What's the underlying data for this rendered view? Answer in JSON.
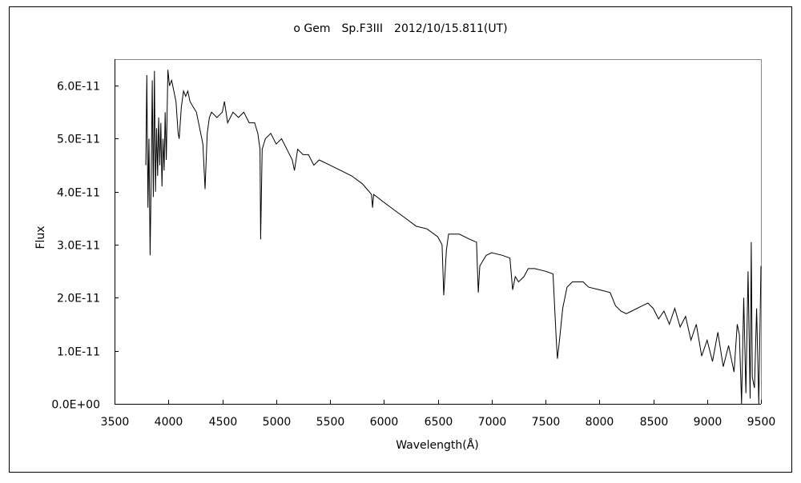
{
  "chart_data": {
    "type": "line",
    "title": "ο Gem　Sp.F3III　2012/10/15.811(UT)",
    "xlabel": "Wavelength(Å)",
    "ylabel": "Flux",
    "xlim": [
      3500,
      9500
    ],
    "ylim": [
      0,
      6.5e-11
    ],
    "x_ticks": [
      "3500",
      "4000",
      "4500",
      "5000",
      "5500",
      "6000",
      "6500",
      "7000",
      "7500",
      "8000",
      "8500",
      "9000",
      "9500"
    ],
    "x_tick_values": [
      3500,
      4000,
      4500,
      5000,
      5500,
      6000,
      6500,
      7000,
      7500,
      8000,
      8500,
      9000,
      9500
    ],
    "y_ticks": [
      "0.0E+00",
      "1.0E-11",
      "2.0E-11",
      "3.0E-11",
      "4.0E-11",
      "5.0E-11",
      "6.0E-11"
    ],
    "y_tick_values": [
      0,
      1e-11,
      2e-11,
      3e-11,
      4e-11,
      5e-11,
      6e-11
    ],
    "grid": false,
    "legend": "none",
    "line_color": "#000000",
    "series": [
      {
        "x": [
          3790,
          3800,
          3810,
          3820,
          3830,
          3840,
          3850,
          3860,
          3870,
          3880,
          3890,
          3900,
          3910,
          3920,
          3930,
          3940,
          3950,
          3960,
          3970,
          3980,
          3995,
          4010,
          4030,
          4050,
          4070,
          4090,
          4100,
          4120,
          4140,
          4160,
          4180,
          4200,
          4230,
          4260,
          4300,
          4320,
          4340,
          4360,
          4380,
          4400,
          4450,
          4500,
          4520,
          4550,
          4600,
          4650,
          4700,
          4750,
          4800,
          4830,
          4850,
          4856,
          4870,
          4900,
          4950,
          5000,
          5050,
          5100,
          5150,
          5170,
          5200,
          5250,
          5300,
          5350,
          5400,
          5500,
          5600,
          5700,
          5800,
          5885,
          5895,
          5905,
          6000,
          6100,
          6200,
          6300,
          6400,
          6500,
          6540,
          6556,
          6580,
          6600,
          6700,
          6800,
          6860,
          6876,
          6890,
          6950,
          7000,
          7100,
          7170,
          7195,
          7220,
          7250,
          7300,
          7340,
          7400,
          7500,
          7570,
          7600,
          7611,
          7630,
          7660,
          7700,
          7750,
          7850,
          7900,
          8000,
          8100,
          8150,
          8200,
          8250,
          8300,
          8400,
          8450,
          8500,
          8550,
          8600,
          8650,
          8700,
          8750,
          8800,
          8850,
          8900,
          8950,
          9000,
          9050,
          9100,
          9150,
          9200,
          9250,
          9280,
          9300,
          9320,
          9340,
          9360,
          9380,
          9400,
          9410,
          9420,
          9440,
          9460,
          9480,
          9500
        ],
        "y": [
          4.5e-11,
          6.2e-11,
          3.7e-11,
          5e-11,
          2.8e-11,
          4.2e-11,
          6.1e-11,
          3.9e-11,
          6.28e-11,
          4e-11,
          5.2e-11,
          4.3e-11,
          5.4e-11,
          4.5e-11,
          5.3e-11,
          4.1e-11,
          5e-11,
          4.4e-11,
          5.5e-11,
          4.6e-11,
          6.3e-11,
          6e-11,
          6.1e-11,
          5.9e-11,
          5.7e-11,
          5.1e-11,
          5e-11,
          5.6e-11,
          5.9e-11,
          5.8e-11,
          5.9e-11,
          5.7e-11,
          5.6e-11,
          5.5e-11,
          5.1e-11,
          4.9e-11,
          4.05e-11,
          5.1e-11,
          5.4e-11,
          5.5e-11,
          5.4e-11,
          5.5e-11,
          5.7e-11,
          5.3e-11,
          5.5e-11,
          5.4e-11,
          5.5e-11,
          5.3e-11,
          5.3e-11,
          5.1e-11,
          4.8e-11,
          3.1e-11,
          4.8e-11,
          5e-11,
          5.1e-11,
          4.9e-11,
          5e-11,
          4.8e-11,
          4.6e-11,
          4.4e-11,
          4.8e-11,
          4.7e-11,
          4.7e-11,
          4.5e-11,
          4.6e-11,
          4.5e-11,
          4.4e-11,
          4.3e-11,
          4.15e-11,
          3.95e-11,
          3.7e-11,
          3.95e-11,
          3.8e-11,
          3.65e-11,
          3.5e-11,
          3.35e-11,
          3.3e-11,
          3.15e-11,
          3e-11,
          2.05e-11,
          2.9e-11,
          3.2e-11,
          3.2e-11,
          3.1e-11,
          3.05e-11,
          2.1e-11,
          2.6e-11,
          2.8e-11,
          2.85e-11,
          2.8e-11,
          2.75e-11,
          2.15e-11,
          2.4e-11,
          2.3e-11,
          2.4e-11,
          2.55e-11,
          2.55e-11,
          2.5e-11,
          2.45e-11,
          1.2e-11,
          8.5e-12,
          1.2e-11,
          1.8e-11,
          2.2e-11,
          2.3e-11,
          2.3e-11,
          2.2e-11,
          2.15e-11,
          2.1e-11,
          1.85e-11,
          1.75e-11,
          1.7e-11,
          1.75e-11,
          1.85e-11,
          1.9e-11,
          1.8e-11,
          1.6e-11,
          1.75e-11,
          1.5e-11,
          1.8e-11,
          1.45e-11,
          1.65e-11,
          1.2e-11,
          1.5e-11,
          9e-12,
          1.2e-11,
          8e-12,
          1.35e-11,
          7e-12,
          1.1e-11,
          6e-12,
          1.5e-11,
          1.3e-11,
          0.0,
          2e-11,
          2e-12,
          2.5e-11,
          1e-12,
          3.05e-11,
          5e-12,
          3e-12,
          1.8e-11,
          0.0,
          2.6e-11
        ]
      }
    ]
  }
}
